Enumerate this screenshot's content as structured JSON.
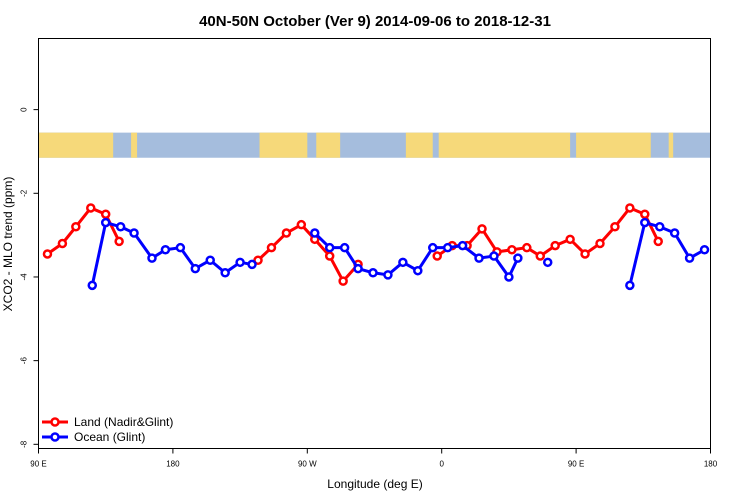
{
  "chart_data": {
    "type": "line",
    "title": "40N-50N October (Ver 9)   2014-09-06 to 2018-12-31",
    "xlabel": "Longitude (deg E)",
    "ylabel": "XCO2 - MLO trend (ppm)",
    "x_ticks": [
      {
        "value": 90,
        "label": "90 E"
      },
      {
        "value": 180,
        "label": "180"
      },
      {
        "value": 270,
        "label": "90 W"
      },
      {
        "value": 360,
        "label": "0"
      },
      {
        "value": 450,
        "label": "90 E"
      },
      {
        "value": 540,
        "label": "180"
      }
    ],
    "y_ticks": [
      0,
      -2,
      -4,
      -6,
      -8
    ],
    "xlim": [
      90,
      540
    ],
    "ylim": [
      -8.1,
      1.7
    ],
    "grid": false,
    "legend_position": "bottom-left",
    "map_band": {
      "ylim": [
        -1.15,
        -0.55
      ],
      "ocean_color": "#a5bddd",
      "land_color": "#f6d97a"
    },
    "series": [
      {
        "name": "Land (Nadir&Glint)",
        "color": "#ff0000",
        "points": [
          [
            96,
            -3.45
          ],
          [
            106,
            -3.2
          ],
          [
            115,
            -2.8
          ],
          [
            125,
            -2.35
          ],
          [
            135,
            -2.5
          ],
          [
            144,
            -3.15
          ],
          [
            null,
            null
          ],
          [
            237,
            -3.6
          ],
          [
            246,
            -3.3
          ],
          [
            256,
            -2.95
          ],
          [
            266,
            -2.75
          ],
          [
            275,
            -3.1
          ],
          [
            285,
            -3.5
          ],
          [
            294,
            -4.1
          ],
          [
            304,
            -3.7
          ],
          [
            null,
            null
          ],
          [
            357,
            -3.5
          ],
          [
            367,
            -3.25
          ],
          [
            377,
            -3.25
          ],
          [
            387,
            -2.85
          ],
          [
            397,
            -3.4
          ],
          [
            407,
            -3.35
          ],
          [
            417,
            -3.3
          ],
          [
            426,
            -3.5
          ],
          [
            436,
            -3.25
          ],
          [
            446,
            -3.1
          ],
          [
            456,
            -3.45
          ],
          [
            466,
            -3.2
          ],
          [
            476,
            -2.8
          ],
          [
            486,
            -2.35
          ],
          [
            496,
            -2.5
          ],
          [
            505,
            -3.15
          ]
        ]
      },
      {
        "name": "Ocean (Glint)",
        "color": "#0000ff",
        "points": [
          [
            126,
            -4.2
          ],
          [
            135,
            -2.7
          ],
          [
            145,
            -2.8
          ],
          [
            154,
            -2.95
          ],
          [
            166,
            -3.55
          ],
          [
            175,
            -3.35
          ],
          [
            185,
            -3.3
          ],
          [
            195,
            -3.8
          ],
          [
            205,
            -3.6
          ],
          [
            215,
            -3.9
          ],
          [
            225,
            -3.65
          ],
          [
            233,
            -3.7
          ],
          [
            null,
            null
          ],
          [
            275,
            -2.95
          ],
          [
            285,
            -3.3
          ],
          [
            295,
            -3.3
          ],
          [
            304,
            -3.8
          ],
          [
            314,
            -3.9
          ],
          [
            324,
            -3.95
          ],
          [
            334,
            -3.65
          ],
          [
            344,
            -3.85
          ],
          [
            354,
            -3.3
          ],
          [
            364,
            -3.3
          ],
          [
            374,
            -3.25
          ],
          [
            385,
            -3.55
          ],
          [
            395,
            -3.5
          ],
          [
            405,
            -4.0
          ],
          [
            411,
            -3.55
          ],
          [
            null,
            null
          ],
          [
            431,
            -3.65
          ],
          [
            null,
            null
          ],
          [
            486,
            -4.2
          ],
          [
            496,
            -2.7
          ],
          [
            506,
            -2.8
          ],
          [
            516,
            -2.95
          ],
          [
            526,
            -3.55
          ],
          [
            536,
            -3.35
          ]
        ]
      }
    ]
  }
}
